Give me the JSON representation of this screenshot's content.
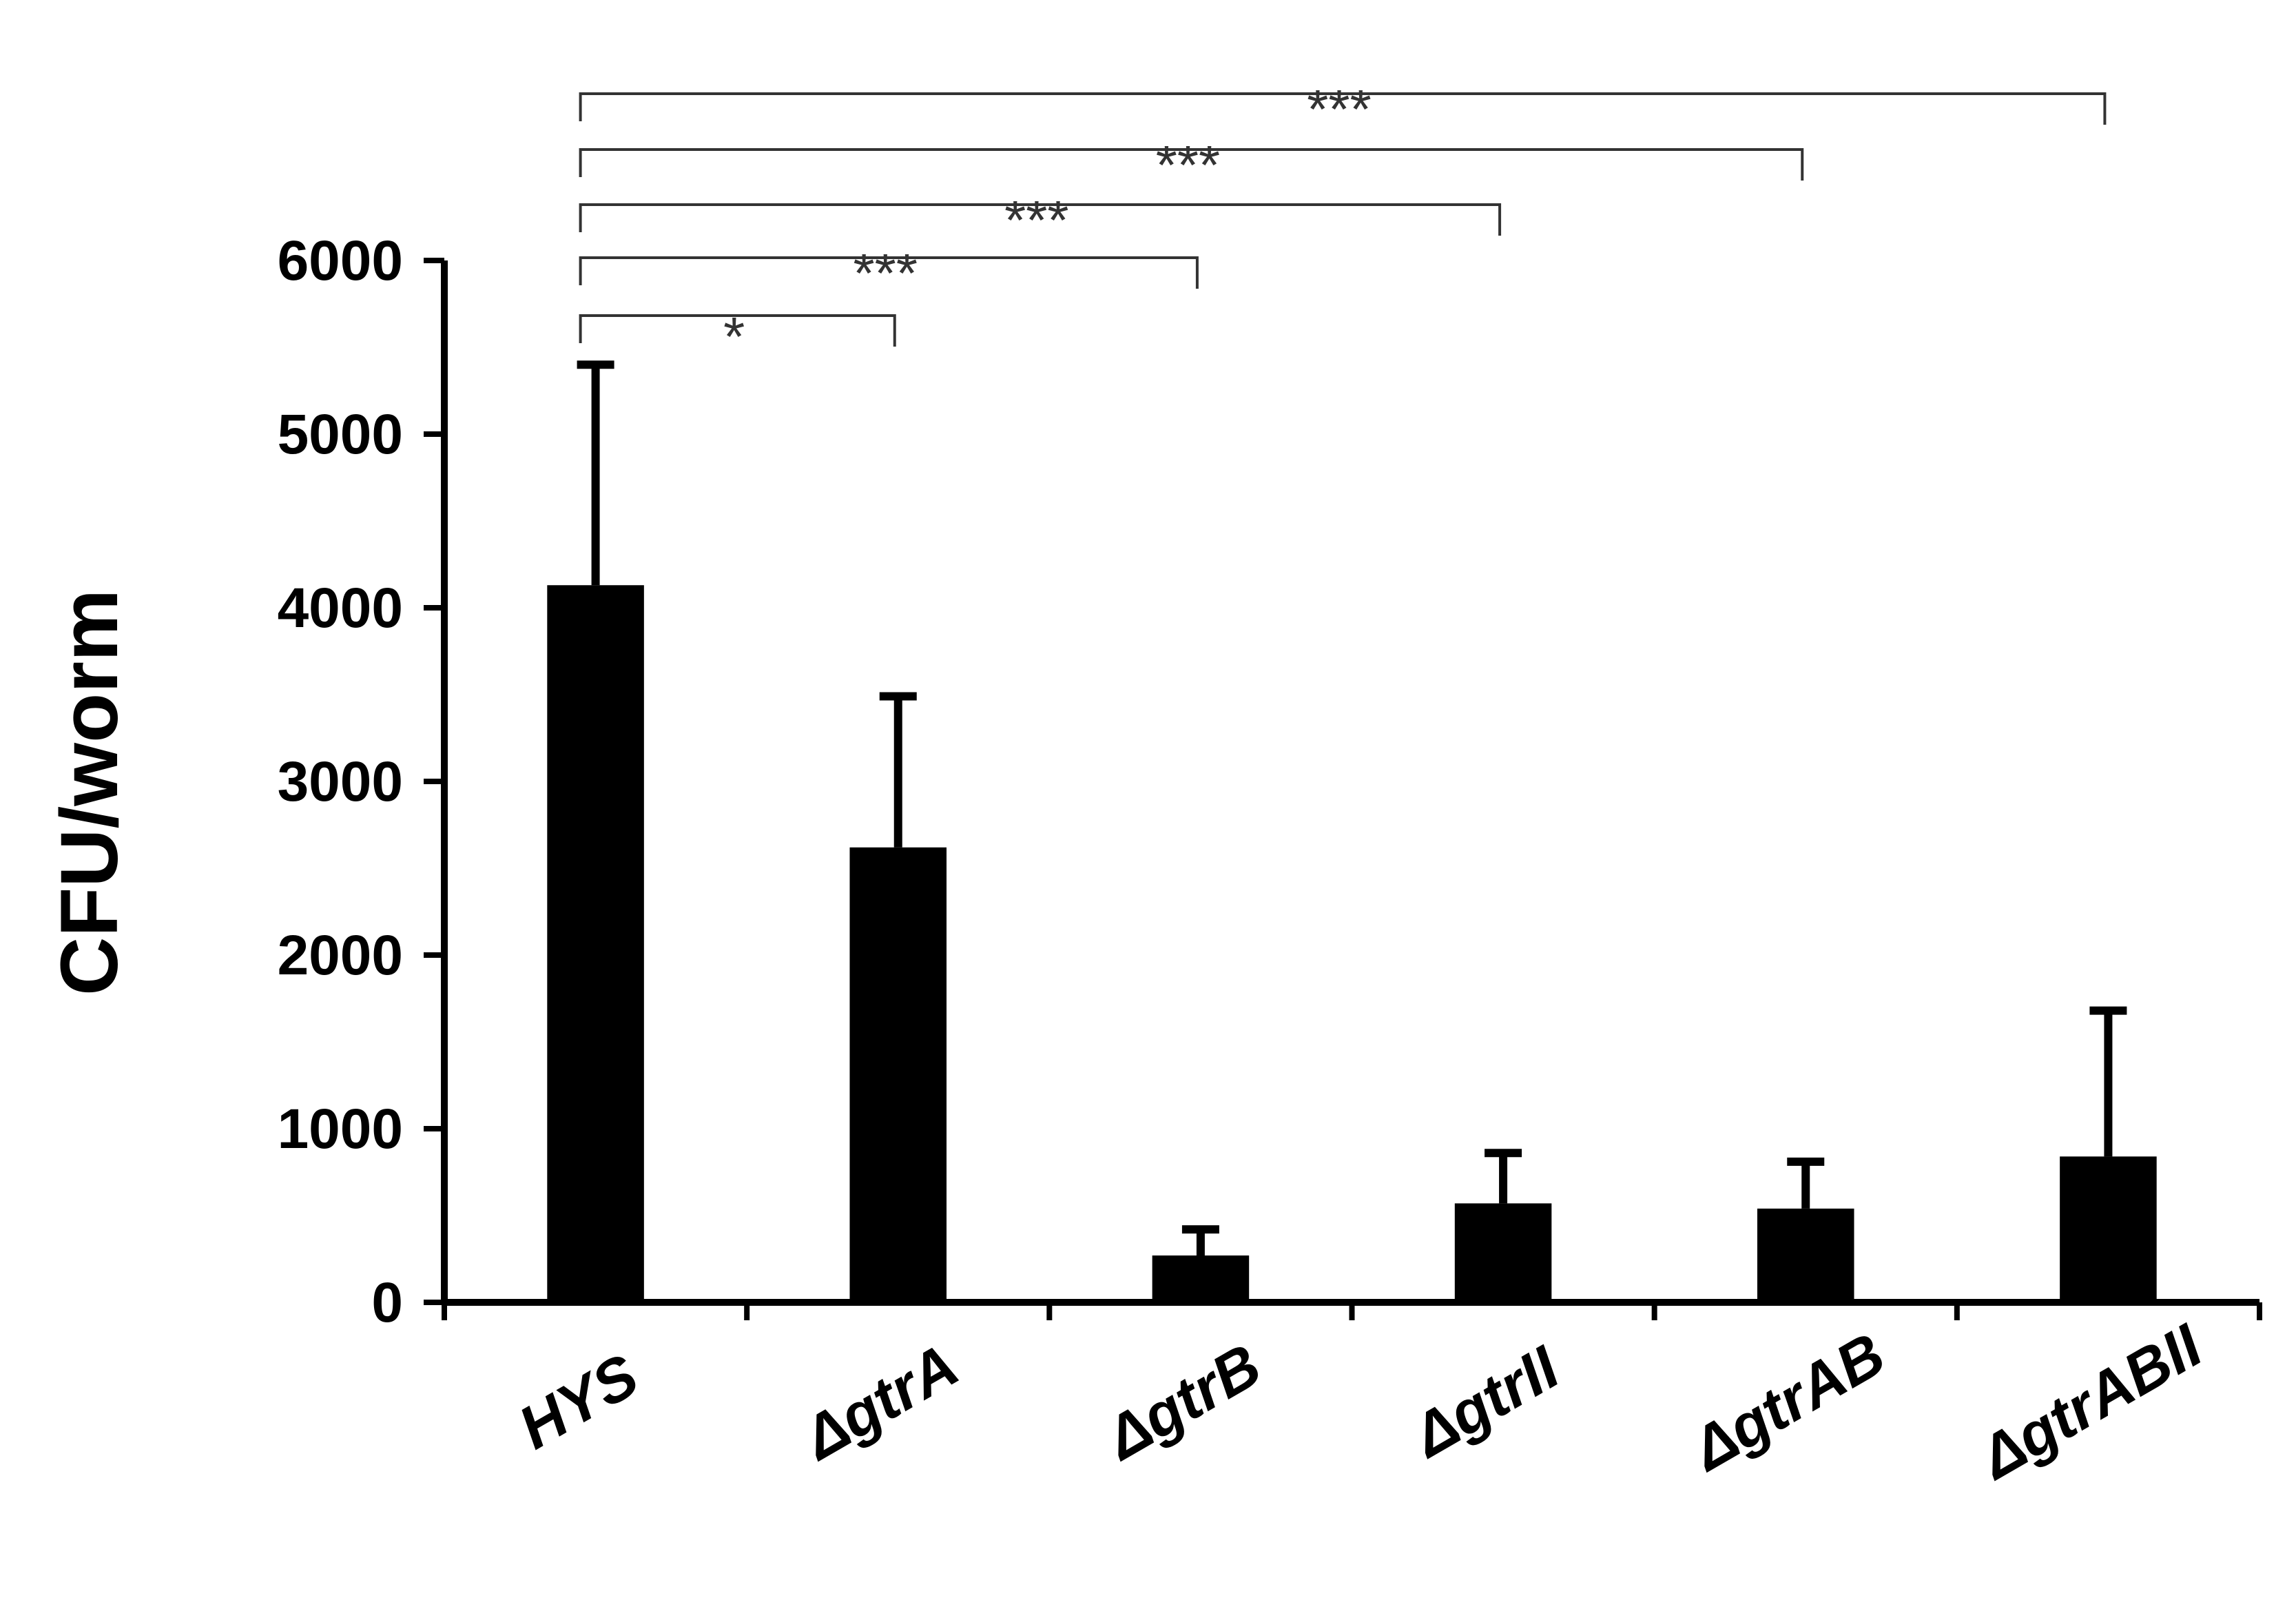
{
  "chart_data": {
    "type": "bar",
    "title": "",
    "xlabel": "",
    "ylabel": "CFU/worm",
    "ylim": [
      0,
      6000
    ],
    "yticks": [
      0,
      1000,
      2000,
      3000,
      4000,
      5000,
      6000
    ],
    "ytick_labels": [
      "0",
      "1000",
      "2000",
      "3000",
      "4000",
      "5000",
      "6000"
    ],
    "categories": [
      "HYS",
      "ΔgtrA",
      "ΔgtrB",
      "ΔgtrII",
      "ΔgtrAB",
      "ΔgtrABII"
    ],
    "values": [
      4130,
      2620,
      270,
      570,
      540,
      840
    ],
    "errors": [
      1270,
      870,
      150,
      290,
      270,
      840
    ],
    "grid": false,
    "legend": "none",
    "colors": {
      "bar": "#000000",
      "axis": "#000000",
      "bracket": "#333333"
    },
    "significance": [
      {
        "from": "HYS",
        "to": "ΔgtrA",
        "label": "*"
      },
      {
        "from": "HYS",
        "to": "ΔgtrB",
        "label": "***"
      },
      {
        "from": "HYS",
        "to": "ΔgtrII",
        "label": "***"
      },
      {
        "from": "HYS",
        "to": "ΔgtrAB",
        "label": "***"
      },
      {
        "from": "HYS",
        "to": "ΔgtrABII",
        "label": "***"
      }
    ]
  }
}
